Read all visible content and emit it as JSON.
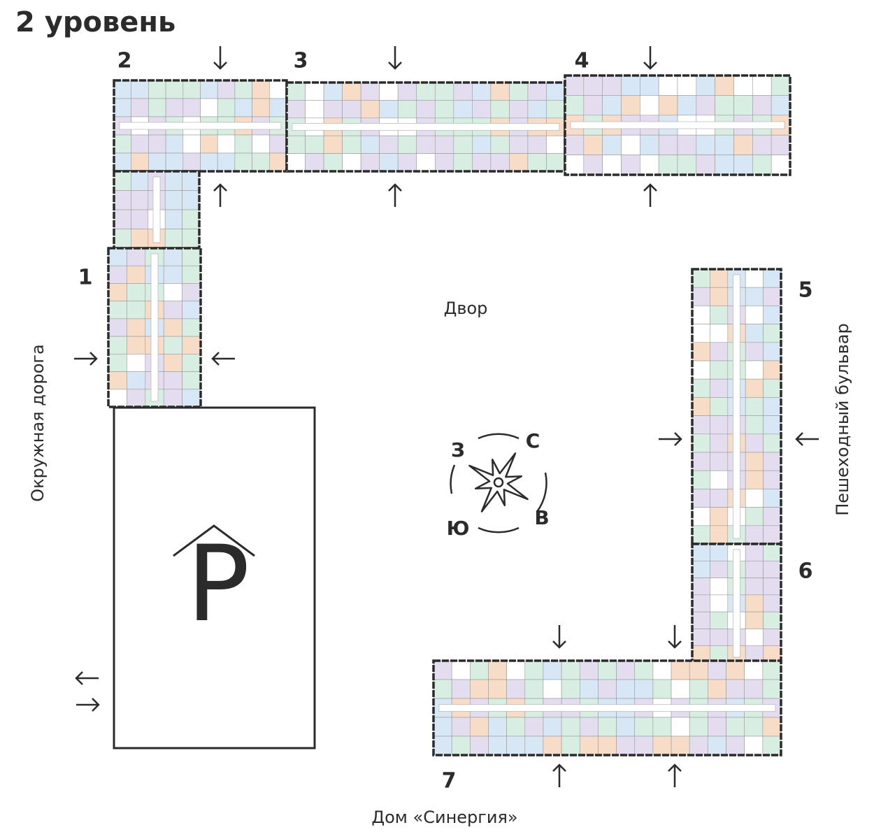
{
  "title": "2 уровень",
  "courtyard": "Двор",
  "sections": [
    "1",
    "2",
    "3",
    "4",
    "5",
    "6",
    "7"
  ],
  "streets": {
    "west": "Окружная дорога",
    "east": "Пешеходный бульвар",
    "south": "Дом «Синергия»"
  },
  "compass": {
    "west": "З",
    "north": "С",
    "south": "Ю",
    "east": "В"
  },
  "parking": "P"
}
